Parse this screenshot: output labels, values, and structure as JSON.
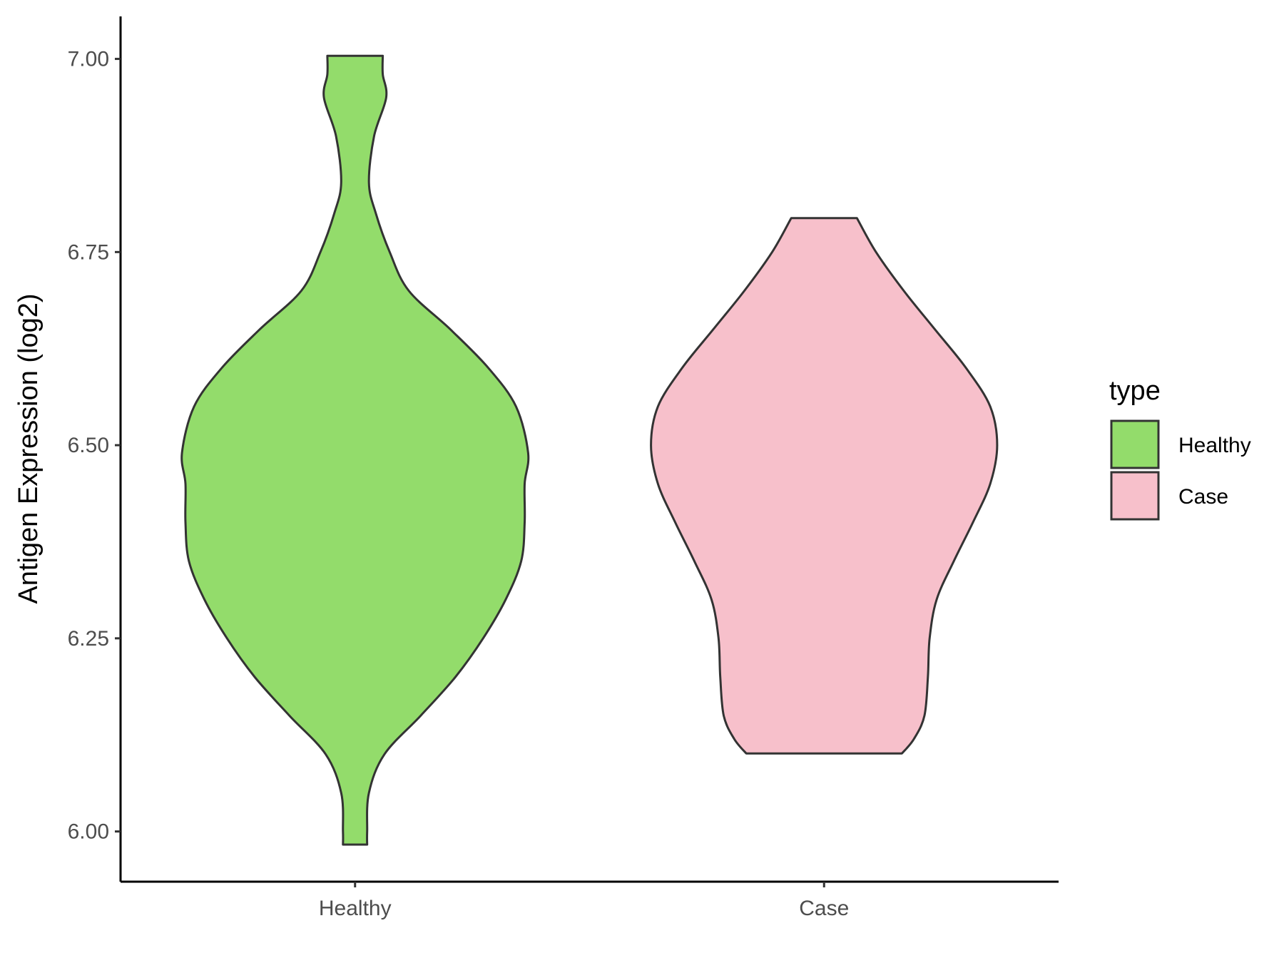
{
  "chart_data": {
    "type": "violin",
    "categories": [
      "Healthy",
      "Case"
    ],
    "ylabel": "Antigen Expression (log2)",
    "xlabel": "",
    "ylim": [
      5.935,
      7.055
    ],
    "yticks": [
      "6.00",
      "6.25",
      "6.50",
      "6.75",
      "7.00"
    ],
    "ytick_values": [
      6.0,
      6.25,
      6.5,
      6.75,
      7.0
    ],
    "grid": false,
    "legend": {
      "title": "type",
      "position": "right",
      "entries": [
        {
          "label": "Healthy",
          "color": "#93dc6b"
        },
        {
          "label": "Case",
          "color": "#f7c0cb"
        }
      ]
    },
    "series": [
      {
        "name": "Healthy",
        "color": "#93dc6b",
        "min": 5.983,
        "max": 7.004,
        "density": [
          [
            5.983,
            0.07
          ],
          [
            6.0,
            0.07
          ],
          [
            6.05,
            0.08
          ],
          [
            6.1,
            0.17
          ],
          [
            6.15,
            0.38
          ],
          [
            6.2,
            0.58
          ],
          [
            6.25,
            0.74
          ],
          [
            6.3,
            0.87
          ],
          [
            6.35,
            0.96
          ],
          [
            6.4,
            0.98
          ],
          [
            6.45,
            0.98
          ],
          [
            6.49,
            1.0
          ],
          [
            6.55,
            0.93
          ],
          [
            6.6,
            0.77
          ],
          [
            6.65,
            0.55
          ],
          [
            6.7,
            0.31
          ],
          [
            6.75,
            0.2
          ],
          [
            6.8,
            0.12
          ],
          [
            6.84,
            0.08
          ],
          [
            6.9,
            0.11
          ],
          [
            6.95,
            0.18
          ],
          [
            6.98,
            0.16
          ],
          [
            7.004,
            0.16
          ]
        ]
      },
      {
        "name": "Case",
        "color": "#f7c0cb",
        "min": 6.101,
        "max": 6.794,
        "density": [
          [
            6.101,
            0.45
          ],
          [
            6.12,
            0.52
          ],
          [
            6.15,
            0.58
          ],
          [
            6.2,
            0.6
          ],
          [
            6.25,
            0.61
          ],
          [
            6.3,
            0.65
          ],
          [
            6.35,
            0.75
          ],
          [
            6.4,
            0.86
          ],
          [
            6.45,
            0.96
          ],
          [
            6.5,
            1.0
          ],
          [
            6.55,
            0.96
          ],
          [
            6.6,
            0.82
          ],
          [
            6.65,
            0.64
          ],
          [
            6.7,
            0.46
          ],
          [
            6.75,
            0.3
          ],
          [
            6.794,
            0.19
          ]
        ]
      }
    ]
  }
}
